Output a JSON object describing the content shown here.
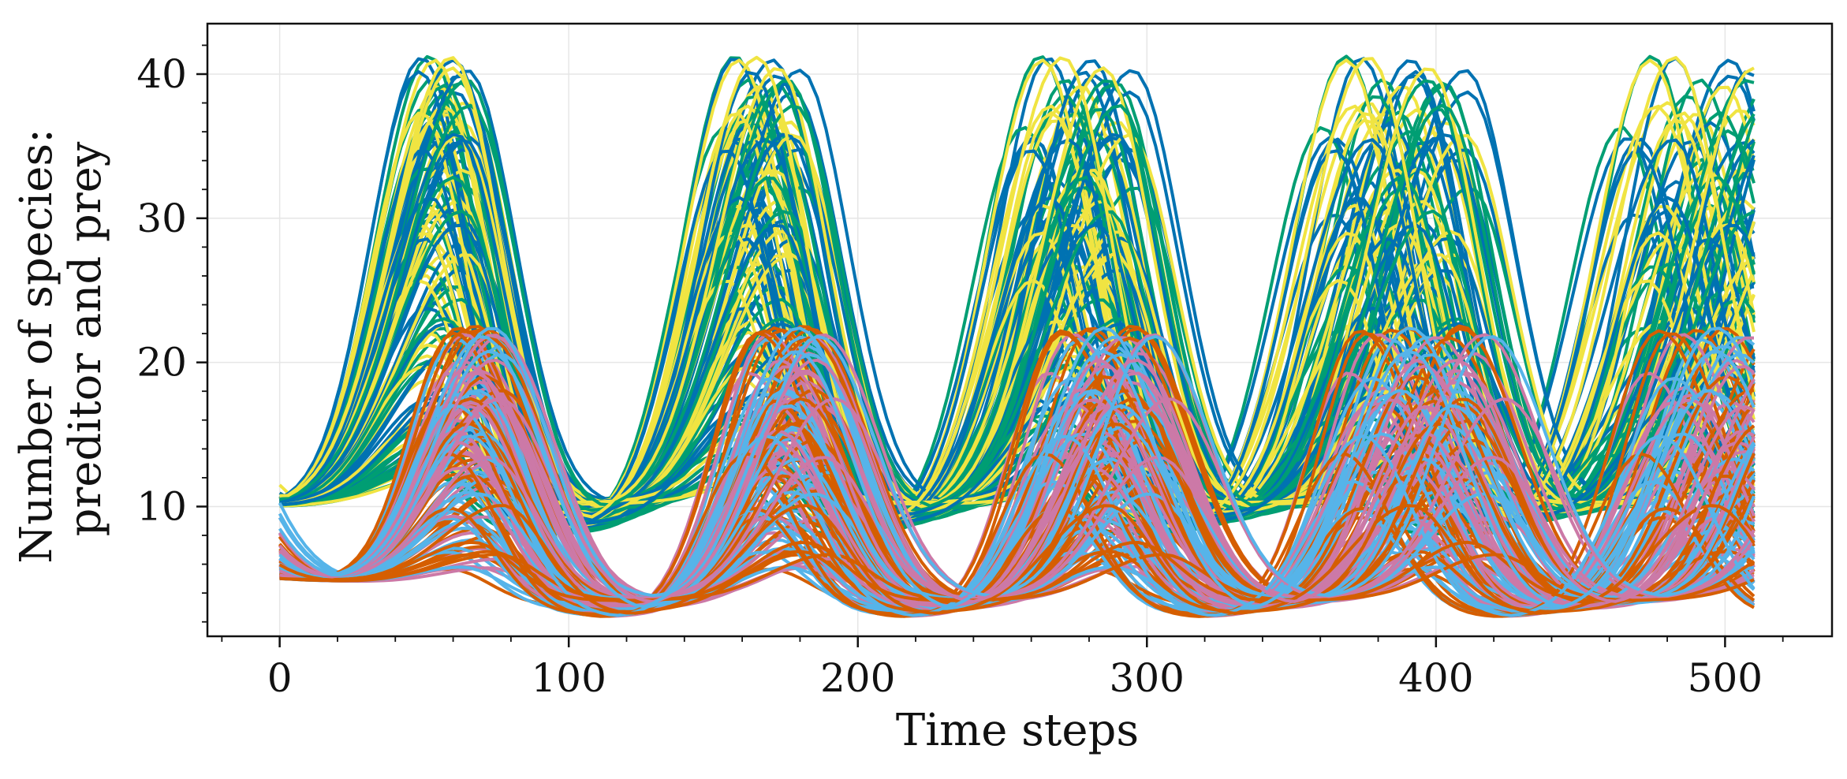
{
  "chart_data": {
    "type": "line",
    "title": "",
    "xlabel": "Time steps",
    "ylabel_lines": [
      "Number of species:",
      "preditor and prey"
    ],
    "xlim": [
      -25,
      537
    ],
    "ylim": [
      1,
      43.5
    ],
    "xticks": [
      0,
      100,
      200,
      300,
      400,
      500
    ],
    "yticks": [
      10,
      20,
      30,
      40
    ],
    "x_minor_step": 20,
    "y_minor_step": 2,
    "grid": true,
    "legend": "none",
    "time_range": [
      0,
      511
    ],
    "palette": {
      "blue": "#0072b2",
      "green": "#009e73",
      "yellow": "#f0e442",
      "orange": "#d55e00",
      "pink": "#cc79a7",
      "skyblue": "#56b4e9"
    },
    "series_groups": [
      {
        "name": "predator",
        "colors": [
          "#009e73",
          "#0072b2",
          "#f0e442"
        ],
        "count": 120,
        "initial_value": 10,
        "first_peak_time": [
          48,
          66
        ],
        "peak_value_range": [
          12,
          41.3
        ],
        "trough_value": 9.2,
        "period": 110
      },
      {
        "name": "prey",
        "colors": [
          "#d55e00",
          "#cc79a7",
          "#56b4e9"
        ],
        "count": 120,
        "initial_value": 5,
        "first_peak_time": [
          58,
          78
        ],
        "peak_value_range": [
          5.5,
          23
        ],
        "trough_value": 3,
        "period": 110
      }
    ]
  }
}
